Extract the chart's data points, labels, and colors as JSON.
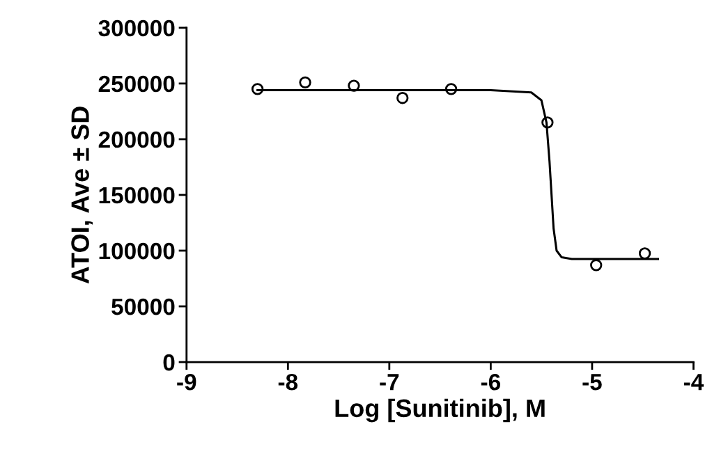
{
  "chart_data": {
    "type": "scatter",
    "xlabel": "Log [Sunitinib], M",
    "ylabel": "ATOI, Ave ± SD",
    "xlim": [
      -9,
      -4
    ],
    "xticks": [
      -9,
      -8,
      -7,
      -6,
      -5,
      -4
    ],
    "ylim": [
      0,
      300000
    ],
    "yticks": [
      0,
      50000,
      100000,
      150000,
      200000,
      250000,
      300000
    ],
    "grid": false,
    "legend": false,
    "series": [
      {
        "color": "#000000",
        "marker": "circle",
        "x": [
          -8.3,
          -7.83,
          -7.35,
          -6.87,
          -6.39,
          -5.44,
          -4.96,
          -4.48
        ],
        "values": [
          245000,
          251000,
          248000,
          237000,
          245000,
          215000,
          87000,
          97500
        ]
      },
      {
        "type": "line",
        "color": "#000000",
        "marker": "none",
        "line_style": "solid",
        "x": [
          -8.3,
          -6.0,
          -5.6,
          -5.5,
          -5.45,
          -5.42,
          -5.4,
          -5.38,
          -5.35,
          -5.3,
          -5.2,
          -4.35
        ],
        "values": [
          244000,
          244000,
          242000,
          235000,
          215000,
          180000,
          150000,
          120000,
          100000,
          94000,
          92500,
          92500
        ]
      }
    ]
  }
}
